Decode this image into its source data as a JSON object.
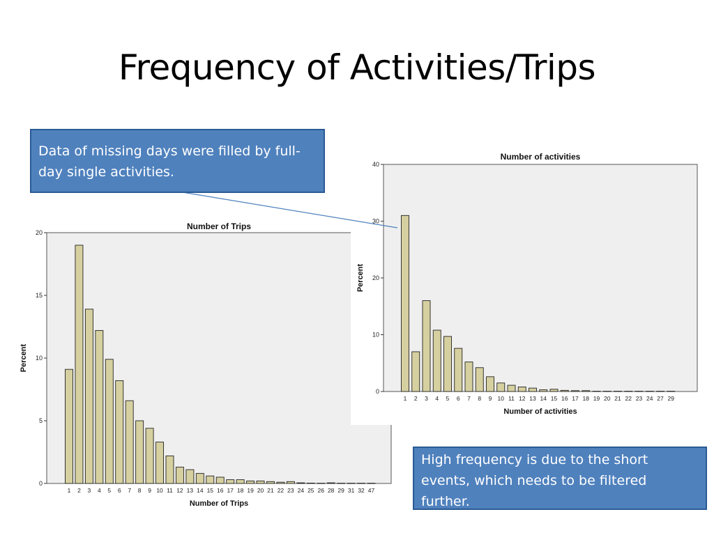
{
  "slide": {
    "title": "Frequency of Activities/Trips"
  },
  "callouts": {
    "missing_days": "Data of missing days were filled by full-day single activities.",
    "high_frequency": "High frequency is due to the short events, which needs to be filtered further."
  },
  "colors": {
    "bar_fill": "#d6d0a0",
    "bar_stroke": "#222222",
    "plot_background": "#efefef",
    "callout_fill": "#4f81bd",
    "callout_border": "#2a5a94",
    "connector": "#4f81bd"
  },
  "chart_data": [
    {
      "type": "bar",
      "title": "Number of Trips",
      "xlabel": "Number of Trips",
      "ylabel": "Percent",
      "ylim": [
        0,
        20
      ],
      "yticks": [
        0,
        5,
        10,
        15,
        20
      ],
      "grid": false,
      "categories": [
        "1",
        "2",
        "3",
        "4",
        "5",
        "6",
        "7",
        "8",
        "9",
        "10",
        "11",
        "12",
        "13",
        "14",
        "15",
        "16",
        "17",
        "18",
        "19",
        "20",
        "21",
        "22",
        "23",
        "24",
        "25",
        "26",
        "28",
        "29",
        "31",
        "32",
        "47"
      ],
      "values": [
        9.1,
        19.0,
        13.9,
        12.2,
        9.9,
        8.2,
        6.6,
        5.0,
        4.4,
        3.3,
        2.2,
        1.3,
        1.1,
        0.8,
        0.6,
        0.5,
        0.3,
        0.3,
        0.2,
        0.2,
        0.15,
        0.1,
        0.15,
        0.05,
        0.03,
        0.02,
        0.05,
        0.02,
        0.02,
        0.02,
        0.02
      ]
    },
    {
      "type": "bar",
      "title": "Number of activities",
      "xlabel": "Number of activities",
      "ylabel": "Percent",
      "ylim": [
        0,
        40
      ],
      "yticks": [
        0,
        10,
        20,
        30,
        40
      ],
      "grid": false,
      "categories": [
        "1",
        "2",
        "3",
        "4",
        "5",
        "6",
        "7",
        "8",
        "9",
        "10",
        "11",
        "12",
        "13",
        "14",
        "15",
        "16",
        "17",
        "18",
        "19",
        "20",
        "21",
        "22",
        "23",
        "24",
        "27",
        "29"
      ],
      "values": [
        31.0,
        7.0,
        16.0,
        10.8,
        9.7,
        7.6,
        5.2,
        4.2,
        2.6,
        1.5,
        1.1,
        0.8,
        0.6,
        0.3,
        0.4,
        0.2,
        0.15,
        0.15,
        0.05,
        0.05,
        0.05,
        0.05,
        0.05,
        0.05,
        0.05,
        0.05
      ]
    }
  ]
}
